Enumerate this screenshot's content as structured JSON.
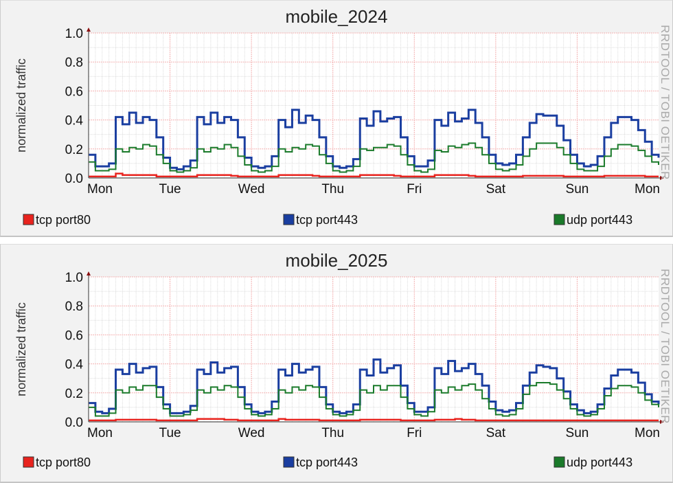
{
  "watermark": "RRDTOOL / TOBI OETIKER",
  "chart_data": [
    {
      "type": "line",
      "title": "mobile_2024",
      "ylabel": "normalized traffic",
      "ylim": [
        0,
        1.0
      ],
      "yticks": [
        "0.0",
        "0.2",
        "0.4",
        "0.6",
        "0.8",
        "1.0"
      ],
      "xticks": [
        "Mon",
        "Tue",
        "Wed",
        "Thu",
        "Fri",
        "Sat",
        "Sun",
        "Mon"
      ],
      "x_step_hours": 2,
      "grid": true,
      "legend_placement": "bottom",
      "series": [
        {
          "name": "tcp port80",
          "color": "#e8231e",
          "values": [
            0.01,
            0.01,
            0.01,
            0.01,
            0.03,
            0.02,
            0.02,
            0.02,
            0.02,
            0.02,
            0.01,
            0.01,
            0.01,
            0.01,
            0.01,
            0.01,
            0.02,
            0.02,
            0.02,
            0.02,
            0.02,
            0.015,
            0.01,
            0.01,
            0.01,
            0.01,
            0.01,
            0.01,
            0.02,
            0.02,
            0.02,
            0.02,
            0.02,
            0.015,
            0.01,
            0.01,
            0.01,
            0.01,
            0.01,
            0.01,
            0.02,
            0.02,
            0.02,
            0.02,
            0.02,
            0.015,
            0.01,
            0.01,
            0.01,
            0.01,
            0.01,
            0.02,
            0.02,
            0.02,
            0.02,
            0.02,
            0.015,
            0.01,
            0.01,
            0.01,
            0.01,
            0.01,
            0.01,
            0.01,
            0.015,
            0.015,
            0.015,
            0.015,
            0.015,
            0.015,
            0.01,
            0.01,
            0.01,
            0.01,
            0.01,
            0.01,
            0.015,
            0.015,
            0.015,
            0.015,
            0.015,
            0.015,
            0.01,
            0.01,
            0.01
          ]
        },
        {
          "name": "tcp port443",
          "color": "#1a3ea0",
          "values": [
            0.16,
            0.08,
            0.08,
            0.1,
            0.42,
            0.37,
            0.45,
            0.38,
            0.42,
            0.4,
            0.28,
            0.14,
            0.07,
            0.06,
            0.08,
            0.12,
            0.42,
            0.37,
            0.45,
            0.38,
            0.42,
            0.4,
            0.28,
            0.14,
            0.08,
            0.07,
            0.08,
            0.15,
            0.4,
            0.35,
            0.47,
            0.38,
            0.43,
            0.4,
            0.28,
            0.15,
            0.08,
            0.07,
            0.08,
            0.13,
            0.41,
            0.36,
            0.46,
            0.39,
            0.41,
            0.42,
            0.28,
            0.15,
            0.08,
            0.08,
            0.12,
            0.4,
            0.36,
            0.45,
            0.39,
            0.41,
            0.47,
            0.38,
            0.28,
            0.16,
            0.1,
            0.09,
            0.1,
            0.16,
            0.28,
            0.38,
            0.44,
            0.43,
            0.43,
            0.36,
            0.26,
            0.16,
            0.1,
            0.08,
            0.09,
            0.15,
            0.28,
            0.38,
            0.42,
            0.42,
            0.4,
            0.33,
            0.25,
            0.16,
            0.14
          ]
        },
        {
          "name": "udp port443",
          "color": "#1a7a2a",
          "values": [
            0.11,
            0.05,
            0.05,
            0.06,
            0.2,
            0.18,
            0.21,
            0.2,
            0.23,
            0.22,
            0.16,
            0.1,
            0.05,
            0.04,
            0.05,
            0.07,
            0.2,
            0.18,
            0.21,
            0.2,
            0.23,
            0.21,
            0.15,
            0.09,
            0.05,
            0.04,
            0.05,
            0.08,
            0.2,
            0.18,
            0.21,
            0.2,
            0.23,
            0.22,
            0.16,
            0.1,
            0.05,
            0.04,
            0.05,
            0.08,
            0.2,
            0.19,
            0.21,
            0.21,
            0.23,
            0.22,
            0.16,
            0.09,
            0.05,
            0.04,
            0.06,
            0.19,
            0.18,
            0.22,
            0.21,
            0.23,
            0.24,
            0.21,
            0.16,
            0.1,
            0.06,
            0.05,
            0.06,
            0.09,
            0.15,
            0.2,
            0.24,
            0.24,
            0.24,
            0.21,
            0.16,
            0.1,
            0.06,
            0.05,
            0.05,
            0.08,
            0.15,
            0.2,
            0.23,
            0.23,
            0.22,
            0.19,
            0.15,
            0.11,
            0.09
          ]
        }
      ]
    },
    {
      "type": "line",
      "title": "mobile_2025",
      "ylabel": "normalized traffic",
      "ylim": [
        0,
        1.0
      ],
      "yticks": [
        "0.0",
        "0.2",
        "0.4",
        "0.6",
        "0.8",
        "1.0"
      ],
      "xticks": [
        "Mon",
        "Tue",
        "Wed",
        "Thu",
        "Fri",
        "Sat",
        "Sun",
        "Mon"
      ],
      "x_step_hours": 2,
      "grid": true,
      "legend_placement": "bottom",
      "series": [
        {
          "name": "tcp port80",
          "color": "#e8231e",
          "values": [
            0.01,
            0.01,
            0.01,
            0.01,
            0.015,
            0.015,
            0.015,
            0.015,
            0.015,
            0.015,
            0.01,
            0.01,
            0.01,
            0.01,
            0.01,
            0.01,
            0.02,
            0.02,
            0.02,
            0.02,
            0.015,
            0.015,
            0.01,
            0.01,
            0.01,
            0.01,
            0.01,
            0.01,
            0.02,
            0.015,
            0.015,
            0.015,
            0.015,
            0.015,
            0.01,
            0.01,
            0.01,
            0.01,
            0.01,
            0.01,
            0.015,
            0.015,
            0.015,
            0.015,
            0.015,
            0.015,
            0.01,
            0.01,
            0.01,
            0.01,
            0.01,
            0.015,
            0.015,
            0.015,
            0.02,
            0.015,
            0.015,
            0.01,
            0.01,
            0.01,
            0.01,
            0.01,
            0.01,
            0.01,
            0.01,
            0.01,
            0.01,
            0.01,
            0.01,
            0.01,
            0.01,
            0.01,
            0.01,
            0.01,
            0.01,
            0.01,
            0.01,
            0.01,
            0.01,
            0.01,
            0.01,
            0.01,
            0.01,
            0.01,
            0.01
          ]
        },
        {
          "name": "tcp port443",
          "color": "#1a3ea0",
          "values": [
            0.13,
            0.07,
            0.06,
            0.09,
            0.36,
            0.33,
            0.4,
            0.34,
            0.37,
            0.38,
            0.24,
            0.12,
            0.06,
            0.06,
            0.07,
            0.11,
            0.36,
            0.33,
            0.41,
            0.34,
            0.37,
            0.38,
            0.24,
            0.12,
            0.07,
            0.06,
            0.07,
            0.14,
            0.36,
            0.32,
            0.4,
            0.34,
            0.36,
            0.38,
            0.24,
            0.12,
            0.07,
            0.06,
            0.07,
            0.12,
            0.36,
            0.32,
            0.43,
            0.34,
            0.37,
            0.39,
            0.25,
            0.13,
            0.07,
            0.07,
            0.1,
            0.37,
            0.33,
            0.42,
            0.35,
            0.37,
            0.4,
            0.33,
            0.25,
            0.14,
            0.08,
            0.07,
            0.08,
            0.13,
            0.25,
            0.34,
            0.39,
            0.38,
            0.37,
            0.3,
            0.21,
            0.12,
            0.08,
            0.06,
            0.07,
            0.12,
            0.23,
            0.32,
            0.36,
            0.36,
            0.34,
            0.27,
            0.19,
            0.14,
            0.12
          ]
        },
        {
          "name": "udp port443",
          "color": "#1a7a2a",
          "values": [
            0.1,
            0.04,
            0.04,
            0.06,
            0.22,
            0.2,
            0.24,
            0.22,
            0.25,
            0.25,
            0.17,
            0.09,
            0.04,
            0.04,
            0.05,
            0.08,
            0.22,
            0.2,
            0.24,
            0.22,
            0.25,
            0.24,
            0.17,
            0.09,
            0.05,
            0.04,
            0.05,
            0.09,
            0.22,
            0.2,
            0.24,
            0.22,
            0.25,
            0.24,
            0.17,
            0.09,
            0.05,
            0.04,
            0.05,
            0.08,
            0.22,
            0.2,
            0.25,
            0.22,
            0.25,
            0.25,
            0.17,
            0.09,
            0.05,
            0.04,
            0.07,
            0.22,
            0.2,
            0.24,
            0.22,
            0.25,
            0.26,
            0.22,
            0.16,
            0.09,
            0.05,
            0.04,
            0.05,
            0.09,
            0.19,
            0.25,
            0.27,
            0.27,
            0.26,
            0.22,
            0.16,
            0.09,
            0.05,
            0.04,
            0.05,
            0.09,
            0.18,
            0.23,
            0.25,
            0.25,
            0.24,
            0.2,
            0.15,
            0.12,
            0.1
          ]
        }
      ]
    }
  ]
}
